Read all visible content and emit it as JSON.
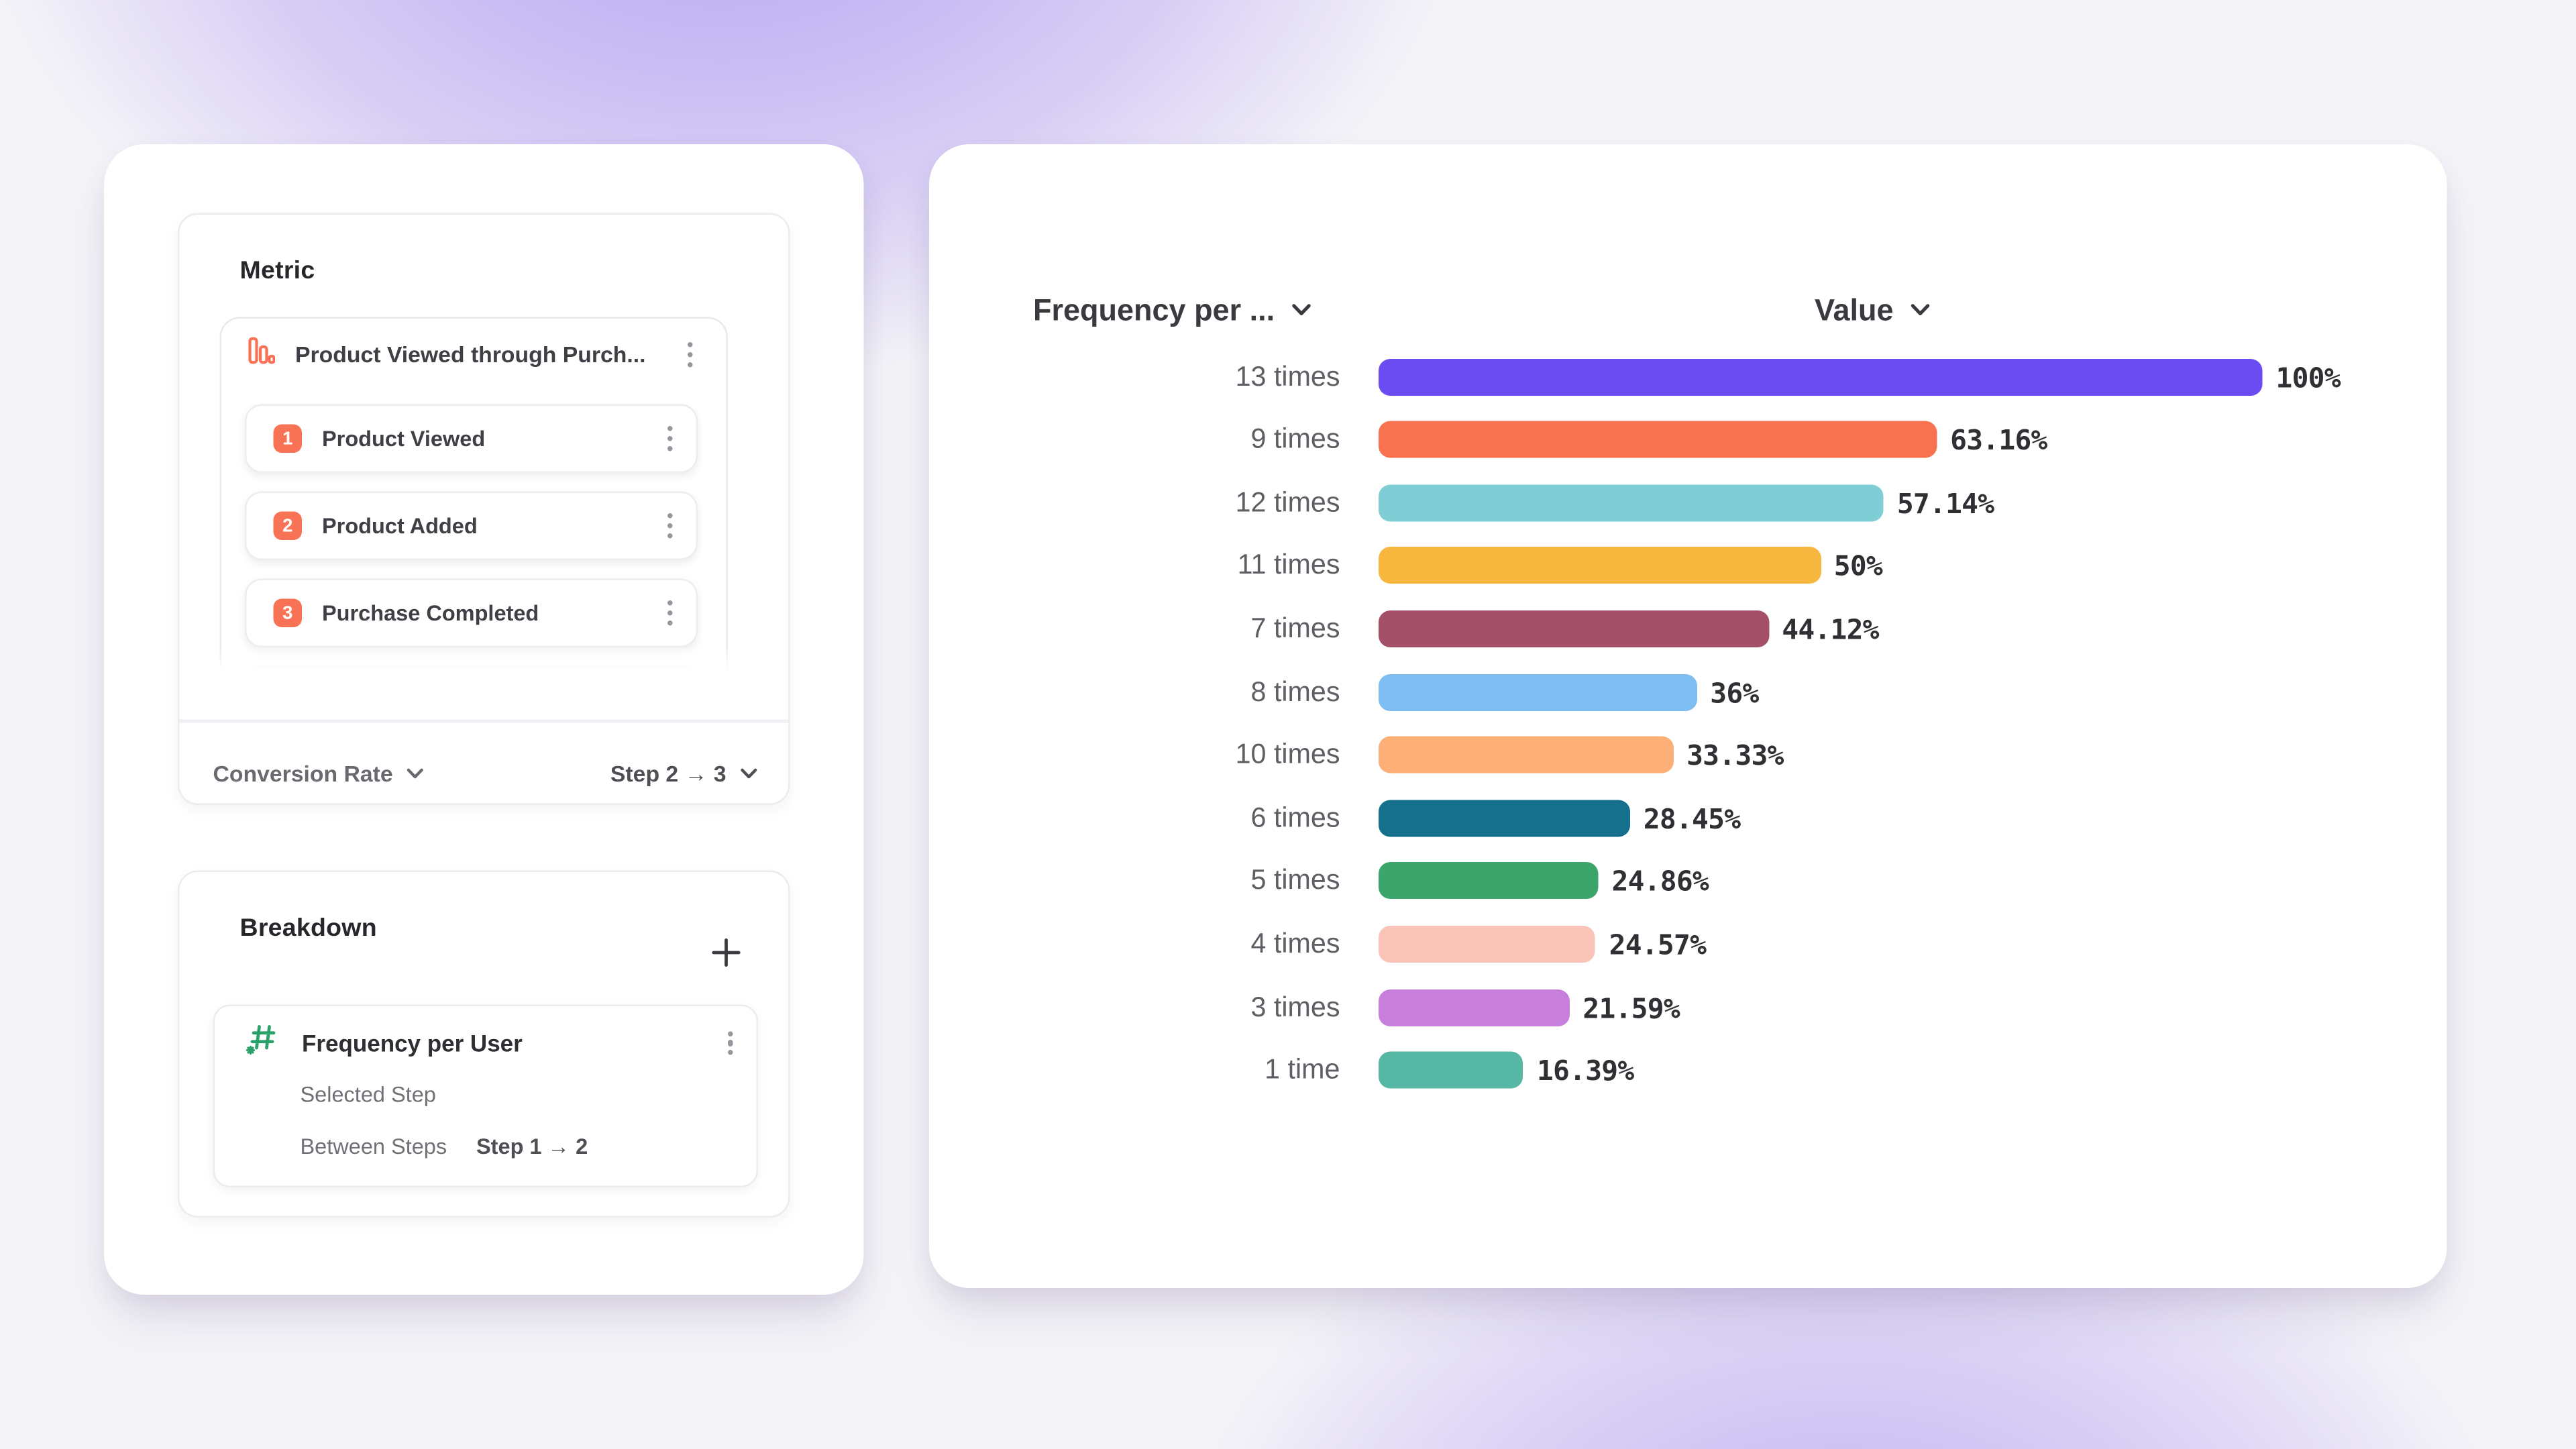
{
  "colors": {
    "accent_orange": "#F87355",
    "accent_green": "#2BA06A",
    "card_bg": "#FFFFFF",
    "background_glow": "#7A56EB",
    "text_dark": "#26272B",
    "text_gray": "#696A70",
    "value_text": "#2F3034"
  },
  "left_panel": {
    "metric_section": {
      "title": "Metric",
      "funnel": {
        "icon": "funnel-bar-chart-icon",
        "title": "Product Viewed through Purch...",
        "steps": [
          {
            "number": "1",
            "label": "Product Viewed"
          },
          {
            "number": "2",
            "label": "Product Added"
          },
          {
            "number": "3",
            "label": "Purchase Completed"
          }
        ]
      },
      "footer": {
        "measure_label": "Conversion Rate",
        "step_range_label": "Step 2 → 3"
      }
    },
    "breakdown_section": {
      "title": "Breakdown",
      "add_icon": "plus-icon",
      "item": {
        "icon": "numeric-hash-icon",
        "title": "Frequency per User",
        "rows": [
          {
            "label": "Selected Step",
            "value": ""
          },
          {
            "label": "Between Steps",
            "value": "Step 1 → 2"
          }
        ]
      }
    }
  },
  "chart_panel": {
    "category_header": "Frequency per ...",
    "value_header": "Value"
  },
  "chart_data": {
    "type": "bar",
    "orientation": "horizontal",
    "title": "",
    "xlabel": "Value",
    "ylabel": "Frequency per ...",
    "xlim": [
      0,
      100
    ],
    "grid": false,
    "legend": false,
    "categories": [
      "13 times",
      "9 times",
      "12 times",
      "11 times",
      "7 times",
      "8 times",
      "10 times",
      "6 times",
      "5 times",
      "4 times",
      "3 times",
      "1 time"
    ],
    "values": [
      100,
      63.16,
      57.14,
      50,
      44.12,
      36,
      33.33,
      28.45,
      24.86,
      24.57,
      21.59,
      16.39
    ],
    "value_labels": [
      "100%",
      "63.16%",
      "57.14%",
      "50%",
      "44.12%",
      "36%",
      "33.33%",
      "28.45%",
      "24.86%",
      "24.57%",
      "21.59%",
      "16.39%"
    ],
    "bar_colors": [
      "#6B4BF2",
      "#F8724F",
      "#7FCED6",
      "#F7B73F",
      "#A55069",
      "#7DBDF1",
      "#FCB077",
      "#15708E",
      "#3CA56C",
      "#FAC3B8",
      "#C77FDB",
      "#55B7A4"
    ]
  }
}
